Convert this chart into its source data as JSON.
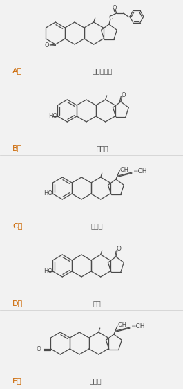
{
  "bg_color": "#f2f2f2",
  "line_color": "#4a4a4a",
  "label_color": "#cc6600",
  "name_color": "#555555",
  "label_fontsize": 8,
  "name_fontsize": 7,
  "options": [
    {
      "label": "A",
      "name": "苯丙酸诺龙"
    },
    {
      "label": "B",
      "name": "雌二醇"
    },
    {
      "label": "C",
      "name": "匈雌醇"
    },
    {
      "label": "D",
      "name": "雌酮"
    },
    {
      "label": "E",
      "name": "匈诺酮"
    }
  ]
}
